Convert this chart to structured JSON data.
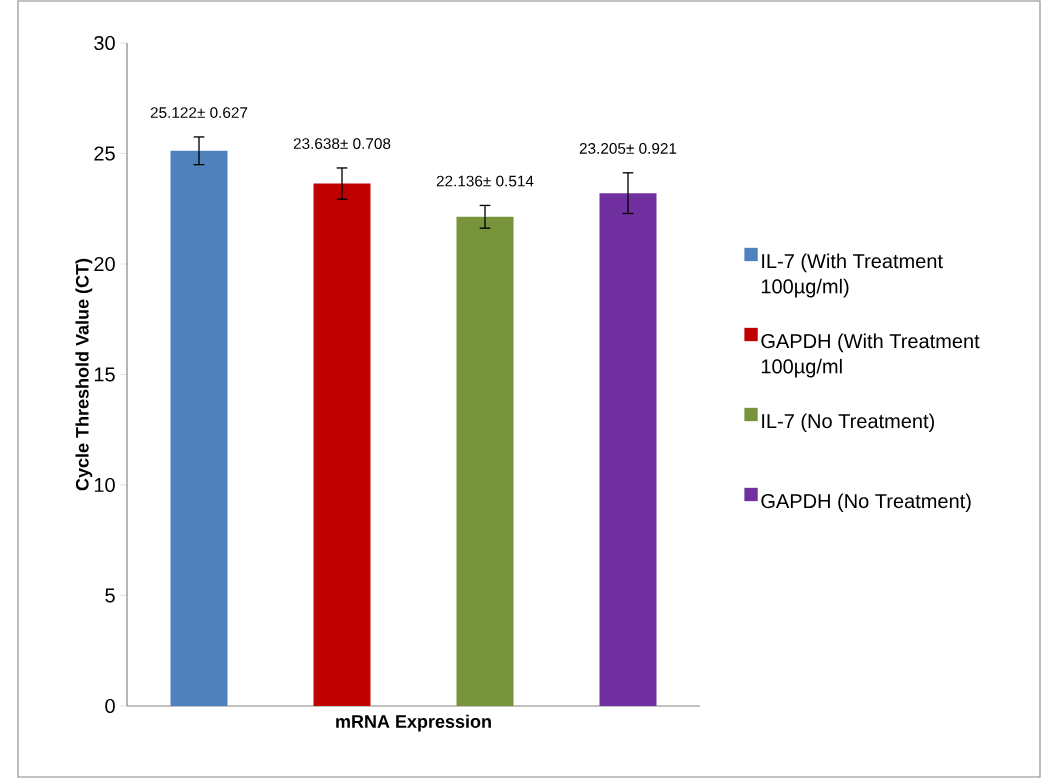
{
  "chart_data": {
    "type": "bar",
    "xlabel": "mRNA Expression",
    "ylabel": "Cycle Threshold Value (CT)",
    "categories": [
      null
    ],
    "series": [
      {
        "name": "IL-7 (With Treatment 100µg/ml)",
        "color": "#4f81bd",
        "values": [
          25.122
        ],
        "errors": [
          0.627
        ],
        "value_labels": [
          "25.122± 0.627"
        ]
      },
      {
        "name": "GAPDH (With Treatment 100µg/ml",
        "color": "#c00000",
        "values": [
          23.638
        ],
        "errors": [
          0.708
        ],
        "value_labels": [
          "23.638± 0.708"
        ]
      },
      {
        "name": "IL-7 (No Treatment)",
        "color": "#77933c",
        "values": [
          22.136
        ],
        "errors": [
          0.514
        ],
        "value_labels": [
          "22.136± 0.514"
        ]
      },
      {
        "name": "GAPDH (No Treatment)",
        "color": "#7030a0",
        "values": [
          23.205
        ],
        "errors": [
          0.921
        ],
        "value_labels": [
          "23.205± 0.921"
        ]
      }
    ],
    "ylim": [
      0,
      30
    ],
    "yticks": [
      0,
      5,
      10,
      15,
      20,
      25,
      30
    ],
    "legend": "right"
  }
}
